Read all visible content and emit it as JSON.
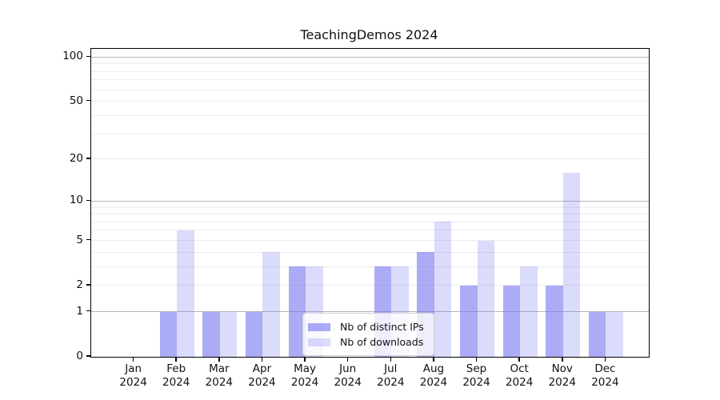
{
  "title": "TeachingDemos 2024",
  "chart_data": {
    "type": "bar",
    "title": "TeachingDemos 2024",
    "categories": [
      "Jan",
      "Feb",
      "Mar",
      "Apr",
      "May",
      "Jun",
      "Jul",
      "Aug",
      "Sep",
      "Oct",
      "Nov",
      "Dec"
    ],
    "year": "2024",
    "series": [
      {
        "name": "Nb of distinct IPs",
        "values": [
          0,
          1,
          1,
          1,
          3,
          0,
          3,
          4,
          2,
          2,
          2,
          1
        ]
      },
      {
        "name": "Nb of downloads",
        "values": [
          0,
          6,
          1,
          4,
          3,
          0,
          3,
          7,
          5,
          3,
          16,
          1
        ]
      }
    ],
    "yscale": "log(x+1)",
    "ytick_labels": [
      "0",
      "1",
      "2",
      "5",
      "10",
      "20",
      "50",
      "100"
    ],
    "ytick_values": [
      0,
      1,
      2,
      5,
      10,
      20,
      50,
      100
    ],
    "major_grid_values": [
      1,
      10,
      100
    ],
    "minor_grid_values": [
      2,
      3,
      4,
      5,
      6,
      7,
      8,
      9,
      20,
      30,
      40,
      50,
      60,
      70,
      80,
      90
    ],
    "ylim": [
      0,
      113
    ],
    "grid": true,
    "legend_position": "lower center"
  },
  "legend": {
    "labels": [
      "Nb of distinct IPs",
      "Nb of downloads"
    ]
  },
  "style": {
    "bar_color_ips": "rgba(110,110,240,0.58)",
    "bar_color_downloads": "rgba(110,110,240,0.25)",
    "major_grid_color": "#b5b5b5",
    "minor_grid_color": "#ebebeb",
    "spine_color": "#000000",
    "background": "#ffffff"
  }
}
